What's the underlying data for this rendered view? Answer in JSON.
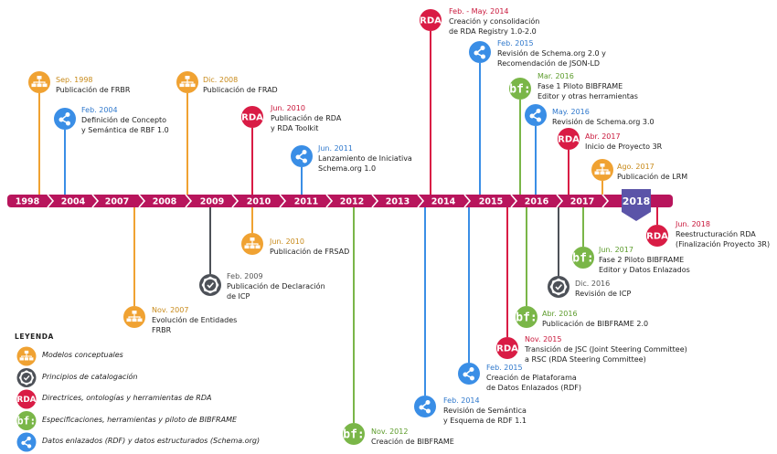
{
  "colors": {
    "bar": "#b8155c",
    "conceptual": "#f0a232",
    "principles": "#4d5158",
    "rda": "#d91c45",
    "bibframe": "#7ab648",
    "linked": "#3a8ee6",
    "badge": "#5b54a8"
  },
  "years": [
    "1998",
    "2004",
    "2007",
    "2008",
    "2009",
    "2010",
    "2011",
    "2012",
    "2013",
    "2014",
    "2015",
    "2016",
    "2017"
  ],
  "badge_year": "2018",
  "events": [
    {
      "date": "Sep. 1998",
      "lines": [
        "Publicación de FRBR"
      ]
    },
    {
      "date": "Feb. 2004",
      "lines": [
        "Definición de Concepto",
        "y Semántica de RBF 1.0"
      ]
    },
    {
      "date": "Nov. 2007",
      "lines": [
        "Evolución de Entidades",
        "FRBR"
      ]
    },
    {
      "date": "Dic. 2008",
      "lines": [
        "Publicación de FRAD"
      ]
    },
    {
      "date": "Feb. 2009",
      "lines": [
        "Publicación de Declaración",
        "de ICP"
      ]
    },
    {
      "date": "Jun. 2010",
      "lines": [
        "Publicación de RDA",
        "y RDA Toolkit"
      ]
    },
    {
      "date": "Jun. 2010",
      "lines": [
        "Publicación de FRSAD"
      ]
    },
    {
      "date": "Jun. 2011",
      "lines": [
        "Lanzamiento de Iniciativa",
        "Schema.org 1.0"
      ]
    },
    {
      "date": "Nov. 2012",
      "lines": [
        "Creación de BIBFRAME"
      ]
    },
    {
      "date": "Feb. - May. 2014",
      "lines": [
        "Creación y consolidación",
        "de RDA Registry 1.0-2.0"
      ]
    },
    {
      "date": "Feb. 2014",
      "lines": [
        "Revisión de Semántica",
        "y Esquema de RDF 1.1"
      ]
    },
    {
      "date": "Feb. 2015",
      "lines": [
        "Revisión de Schema.org 2.0 y",
        "Recomendación de JSON-LD"
      ]
    },
    {
      "date": "Feb. 2015",
      "lines": [
        "Creación de Plataforama",
        "de Datos Enlazados (RDF)"
      ]
    },
    {
      "date": "Nov. 2015",
      "lines": [
        "Transición de JSC (Joint Steering Committee)",
        "a RSC (RDA Steering Committee)"
      ]
    },
    {
      "date": "Mar. 2016",
      "lines": [
        "Fase 1 Piloto BIBFRAME",
        "Editor y otras herramientas"
      ]
    },
    {
      "date": "May. 2016",
      "lines": [
        "Revisión de Schema.org 3.0"
      ]
    },
    {
      "date": "Abr. 2016",
      "lines": [
        "Publicación de BIBFRAME 2.0"
      ]
    },
    {
      "date": "Dic. 2016",
      "lines": [
        "Revisión de ICP"
      ]
    },
    {
      "date": "Abr. 2017",
      "lines": [
        "Inicio de Proyecto 3R"
      ]
    },
    {
      "date": "Ago. 2017",
      "lines": [
        "Publicación de LRM"
      ]
    },
    {
      "date": "Jun. 2017",
      "lines": [
        "Fase 2 Piloto BIBFRAME",
        "Editor y Datos Enlazados"
      ]
    },
    {
      "date": "Jun. 2018",
      "lines": [
        "Reestructuración RDA",
        "(Finalización Proyecto 3R)"
      ]
    }
  ],
  "icon_text": {
    "rda": "RDA",
    "bibframe": "bf:"
  },
  "legend": {
    "title": "LEYENDA",
    "items": [
      {
        "icon": "conceptual",
        "label": "Modelos conceptuales"
      },
      {
        "icon": "principles",
        "label": "Principios de catalogación"
      },
      {
        "icon": "rda",
        "label": "Directrices, ontologías y herramientas de RDA"
      },
      {
        "icon": "bibframe",
        "label": "Especificaciones, herramientas y piloto de BIBFRAME"
      },
      {
        "icon": "linked",
        "label": "Datos enlazados (RDF) y datos estructurados (Schema.org)"
      }
    ]
  }
}
